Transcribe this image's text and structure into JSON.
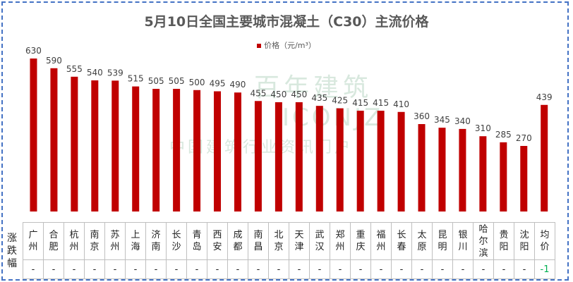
{
  "chart_data": {
    "type": "bar",
    "title": "5月10日全国主要城市混凝土（C30）主流价格",
    "series": [
      {
        "name": "价格（元/m³）",
        "color": "#c00000",
        "values": [
          630,
          590,
          555,
          540,
          539,
          515,
          505,
          505,
          500,
          495,
          490,
          455,
          450,
          450,
          435,
          425,
          415,
          415,
          410,
          360,
          345,
          340,
          310,
          285,
          270,
          439
        ]
      }
    ],
    "categories": [
      "广州",
      "合肥",
      "杭州",
      "南京",
      "苏州",
      "上海",
      "济南",
      "长沙",
      "青岛",
      "西安",
      "成都",
      "南昌",
      "北京",
      "天津",
      "武汉",
      "郑州",
      "重庆",
      "福州",
      "长春",
      "太原",
      "昆明",
      "银川",
      "哈尔滨",
      "贵阳",
      "沈阳",
      "均价"
    ],
    "data_labels": true,
    "grid": false,
    "legend": "top-center",
    "ylim": [
      0,
      630
    ]
  },
  "table": {
    "row_header": "涨跌幅",
    "changes": [
      "-",
      "-",
      "-",
      "-",
      "-",
      "-",
      "-",
      "-",
      "-",
      "-",
      "-",
      "-",
      "-",
      "-",
      "-",
      "-",
      "-",
      "-",
      "-",
      "-",
      "-",
      "-",
      "-",
      "-",
      "-",
      "-1"
    ]
  },
  "watermark": {
    "brand": "百年建筑",
    "latin": "ICONJZ",
    "slogan": "中国建筑行业资讯门户"
  },
  "colors": {
    "bar": "#c00000",
    "border": "#4472c4",
    "positive": "#00b050"
  }
}
